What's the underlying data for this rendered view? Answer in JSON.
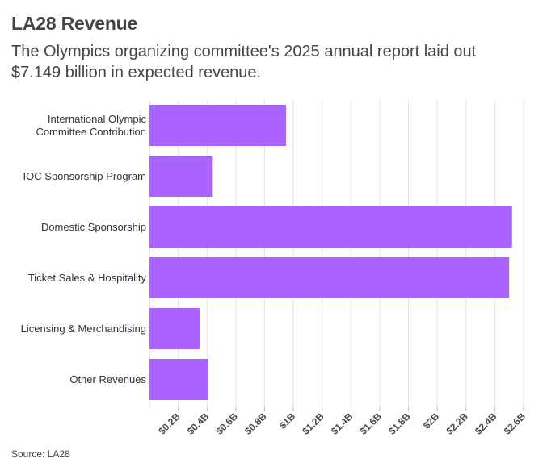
{
  "title": "LA28 Revenue",
  "subtitle": "The Olympics organizing committee's 2025 annual report laid out $7.149 billion in expected revenue.",
  "source": "Source: LA28",
  "chart_data": {
    "type": "bar",
    "orientation": "horizontal",
    "categories": [
      [
        "International Olympic",
        "Committee Contribution"
      ],
      [
        "IOC Sponsorship Program"
      ],
      [
        "Domestic Sponsorship"
      ],
      [
        "Ticket Sales & Hospitality"
      ],
      [
        "Licensing & Merchandising"
      ],
      [
        "Other Revenues"
      ]
    ],
    "values": [
      0.95,
      0.44,
      2.52,
      2.5,
      0.35,
      0.41
    ],
    "unit": "billion USD",
    "xlim": [
      0,
      2.6
    ],
    "ticks": [
      0.2,
      0.4,
      0.6,
      0.8,
      1.0,
      1.2,
      1.4,
      1.6,
      1.8,
      2.0,
      2.2,
      2.4,
      2.6
    ],
    "tick_labels": [
      "$0.2B",
      "$0.4B",
      "$0.6B",
      "$0.8B",
      "$1B",
      "$1.2B",
      "$1.4B",
      "$1.6B",
      "$1.8B",
      "$2B",
      "$2.2B",
      "$2.4B",
      "$2.6B"
    ],
    "bar_color": "#aa63ff",
    "grid": true,
    "legend": "none"
  }
}
